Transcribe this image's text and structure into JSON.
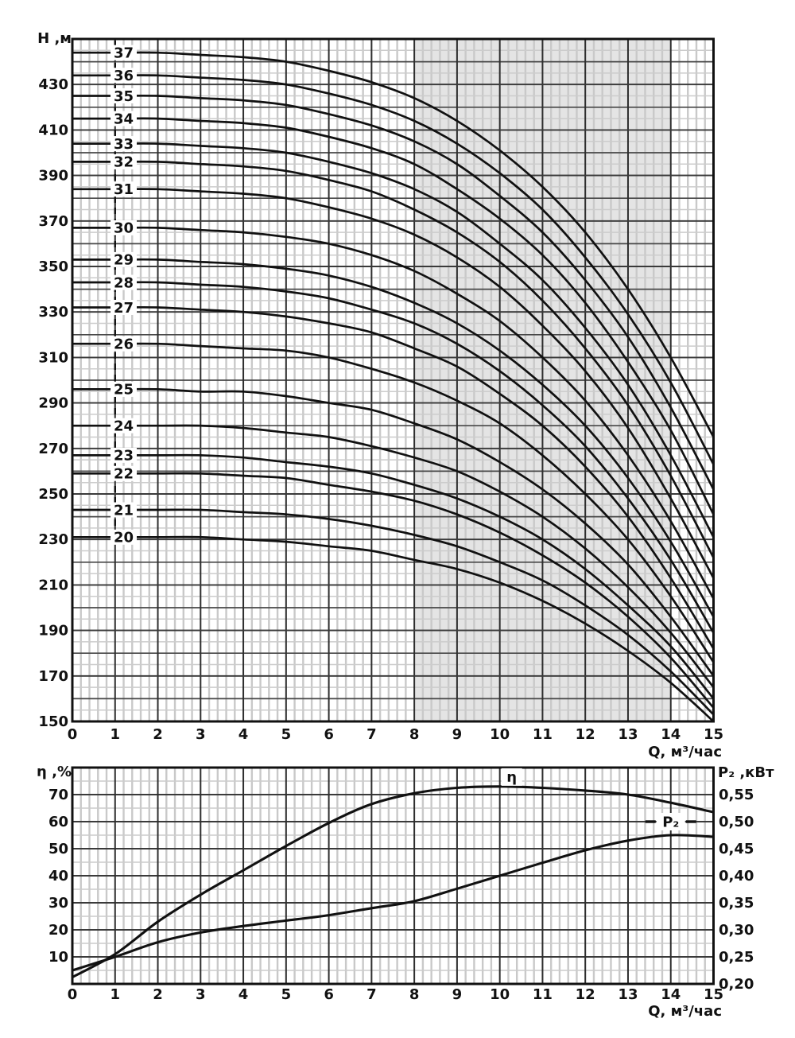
{
  "colors": {
    "band": "#e4e4e4",
    "curve": "#111111",
    "grid_major_v": "#2e2e2e",
    "grid_major_h": "#474747",
    "grid_minor": "#c9c9c9",
    "border": "#111111",
    "text": "#111111"
  },
  "chart_data": [
    {
      "type": "line",
      "ylabel": "Н ,м",
      "xlabel": "Q, м³/час",
      "xlim": [
        0,
        15
      ],
      "ylim": [
        150,
        450
      ],
      "x_ticks": [
        0,
        1,
        2,
        3,
        4,
        5,
        6,
        7,
        8,
        9,
        10,
        11,
        12,
        13,
        14,
        15
      ],
      "y_ticks": [
        150,
        170,
        190,
        210,
        230,
        250,
        270,
        290,
        310,
        330,
        350,
        370,
        390,
        410,
        430
      ],
      "y_grid_major_step": 10,
      "y_grid_minor_step": 5,
      "x_grid_minor_step": 0.2,
      "shaded_band": {
        "x_from": 8,
        "x_to": 14
      },
      "dashed_marker_x": 1,
      "stage_label_x": 1.2,
      "x": [
        0,
        1,
        2,
        3,
        4,
        5,
        6,
        7,
        8,
        9,
        10,
        11,
        12,
        13,
        14,
        15
      ],
      "series": [
        {
          "name": "20",
          "values": [
            231,
            231,
            231,
            231,
            230,
            229,
            227,
            225,
            221,
            217,
            211,
            203,
            193,
            181,
            167,
            150
          ]
        },
        {
          "name": "21",
          "values": [
            243,
            243,
            243,
            243,
            242,
            241,
            239,
            236,
            232,
            227,
            220,
            212,
            201,
            188,
            172,
            153
          ]
        },
        {
          "name": "22",
          "values": [
            259,
            259,
            259,
            259,
            258,
            257,
            254,
            251,
            247,
            241,
            233,
            223,
            211,
            196,
            178,
            156
          ]
        },
        {
          "name": "23",
          "values": [
            267,
            267,
            267,
            267,
            266,
            264,
            262,
            259,
            254,
            248,
            240,
            230,
            217,
            201,
            183,
            160
          ]
        },
        {
          "name": "24",
          "values": [
            280,
            280,
            280,
            280,
            279,
            277,
            275,
            271,
            266,
            260,
            251,
            240,
            226,
            209,
            189,
            165
          ]
        },
        {
          "name": "25",
          "values": [
            296,
            296,
            296,
            295,
            295,
            293,
            290,
            287,
            281,
            274,
            264,
            252,
            237,
            219,
            196,
            170
          ]
        },
        {
          "name": "26",
          "values": [
            316,
            316,
            316,
            315,
            314,
            313,
            310,
            305,
            299,
            291,
            281,
            267,
            250,
            230,
            205,
            176
          ]
        },
        {
          "name": "27",
          "values": [
            332,
            332,
            332,
            331,
            330,
            328,
            325,
            321,
            314,
            306,
            294,
            280,
            262,
            240,
            213,
            182
          ]
        },
        {
          "name": "28",
          "values": [
            343,
            343,
            343,
            342,
            341,
            339,
            336,
            331,
            325,
            316,
            304,
            289,
            271,
            248,
            221,
            189
          ]
        },
        {
          "name": "29",
          "values": [
            353,
            353,
            353,
            352,
            351,
            349,
            346,
            341,
            334,
            325,
            313,
            298,
            280,
            257,
            229,
            196
          ]
        },
        {
          "name": "30",
          "values": [
            367,
            367,
            367,
            366,
            365,
            363,
            360,
            355,
            348,
            338,
            326,
            310,
            291,
            267,
            238,
            204
          ]
        },
        {
          "name": "31",
          "values": [
            384,
            384,
            384,
            383,
            382,
            380,
            376,
            371,
            364,
            354,
            341,
            324,
            304,
            279,
            248,
            213
          ]
        },
        {
          "name": "32",
          "values": [
            396,
            396,
            396,
            395,
            394,
            392,
            388,
            383,
            375,
            365,
            352,
            335,
            314,
            289,
            258,
            222
          ]
        },
        {
          "name": "33",
          "values": [
            404,
            404,
            404,
            403,
            402,
            400,
            396,
            391,
            384,
            374,
            360,
            344,
            323,
            298,
            267,
            231
          ]
        },
        {
          "name": "34",
          "values": [
            415,
            415,
            415,
            414,
            413,
            411,
            407,
            402,
            395,
            384,
            371,
            355,
            334,
            308,
            278,
            241
          ]
        },
        {
          "name": "35",
          "values": [
            425,
            425,
            425,
            424,
            423,
            421,
            417,
            412,
            405,
            395,
            381,
            365,
            344,
            319,
            288,
            252
          ]
        },
        {
          "name": "36",
          "values": [
            434,
            434,
            434,
            433,
            432,
            430,
            426,
            421,
            414,
            404,
            391,
            375,
            354,
            329,
            299,
            263
          ]
        },
        {
          "name": "37",
          "values": [
            444,
            444,
            444,
            443,
            442,
            440,
            436,
            431,
            424,
            414,
            401,
            385,
            365,
            340,
            310,
            275
          ]
        }
      ]
    },
    {
      "type": "line",
      "xlabel": "Q, м³/час",
      "left_axis": {
        "label": "η ,%",
        "lim": [
          0,
          80
        ],
        "ticks": [
          10,
          20,
          30,
          40,
          50,
          60,
          70
        ],
        "grid_major_step": 10,
        "grid_minor_step": 5
      },
      "right_axis": {
        "label": "P₂ ,кВт",
        "lim": [
          0.2,
          0.6
        ],
        "tick_labels": [
          "0,20",
          "0,25",
          "0,30",
          "0,35",
          "0,40",
          "0,45",
          "0,50",
          "0,55"
        ],
        "tick_values": [
          0.2,
          0.25,
          0.3,
          0.35,
          0.4,
          0.45,
          0.5,
          0.55
        ]
      },
      "x_ticks": [
        0,
        1,
        2,
        3,
        4,
        5,
        6,
        7,
        8,
        9,
        10,
        11,
        12,
        13,
        14,
        15
      ],
      "x_grid_minor_step": 0.2,
      "x": [
        0,
        1,
        2,
        3,
        4,
        5,
        6,
        7,
        8,
        9,
        10,
        11,
        12,
        13,
        14,
        15
      ],
      "series": [
        {
          "name": "η",
          "axis": "left",
          "values": [
            2.5,
            11,
            23,
            33,
            42,
            51,
            59.5,
            66.5,
            70.5,
            72.5,
            73,
            72.5,
            71.5,
            70,
            67,
            63.5
          ],
          "label_pos": {
            "x": 10.28,
            "y": 76.5
          }
        },
        {
          "name": "P₂",
          "axis": "right",
          "values": [
            0.225,
            0.25,
            0.277,
            0.295,
            0.307,
            0.317,
            0.327,
            0.34,
            0.353,
            0.376,
            0.4,
            0.424,
            0.447,
            0.465,
            0.475,
            0.472
          ],
          "label_pos": {
            "x": 14.0,
            "y": 0.5
          }
        }
      ]
    }
  ]
}
